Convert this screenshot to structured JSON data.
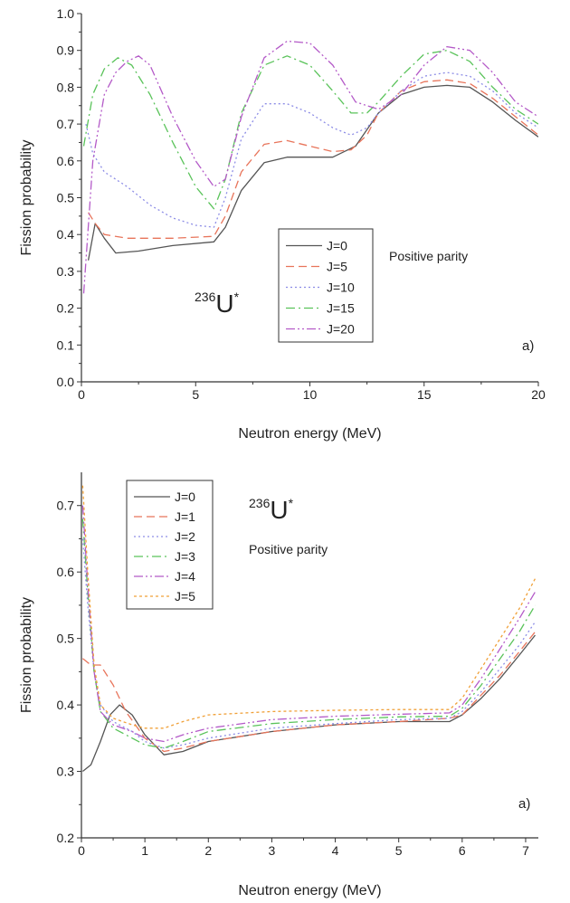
{
  "chart_data": [
    {
      "type": "line",
      "xlabel": "Neutron energy (MeV)",
      "ylabel": "Fission probability",
      "xlim": [
        0,
        20
      ],
      "ylim": [
        0.0,
        1.0
      ],
      "xticks": [
        0,
        5,
        10,
        15,
        20
      ],
      "yticks": [
        0.0,
        0.1,
        0.2,
        0.3,
        0.4,
        0.5,
        0.6,
        0.7,
        0.8,
        0.9,
        1.0
      ],
      "tick_format_y": 1,
      "legend_position": "center-right",
      "annotation_nuclide": {
        "mass": "236",
        "symbol": "U",
        "mark": "*"
      },
      "annotation_parity": "Positive parity",
      "panel_tag": "a)",
      "series": [
        {
          "name": "J=0",
          "color": "#555555",
          "dash": "none",
          "x": [
            0.3,
            0.6,
            1.0,
            1.5,
            2.5,
            4,
            5.8,
            6.3,
            7,
            8,
            9,
            10,
            11,
            12,
            13,
            14,
            15,
            16,
            17,
            18,
            19,
            20
          ],
          "y": [
            0.33,
            0.43,
            0.39,
            0.35,
            0.355,
            0.37,
            0.38,
            0.42,
            0.52,
            0.595,
            0.61,
            0.61,
            0.61,
            0.64,
            0.73,
            0.78,
            0.8,
            0.805,
            0.8,
            0.76,
            0.71,
            0.665
          ]
        },
        {
          "name": "J=5",
          "color": "#e8745a",
          "dash": "9,5",
          "x": [
            0.3,
            0.6,
            1.0,
            2,
            4,
            5.8,
            6.3,
            7,
            8,
            9,
            10,
            11,
            11.8,
            12.5,
            13,
            14,
            15,
            16,
            17,
            18,
            19,
            20
          ],
          "y": [
            0.46,
            0.43,
            0.4,
            0.39,
            0.39,
            0.395,
            0.45,
            0.57,
            0.645,
            0.655,
            0.64,
            0.625,
            0.63,
            0.67,
            0.73,
            0.79,
            0.815,
            0.82,
            0.81,
            0.77,
            0.72,
            0.67
          ]
        },
        {
          "name": "J=10",
          "color": "#8d8de6",
          "dash": "2,3",
          "x": [
            0.2,
            0.5,
            1.0,
            2,
            3,
            4,
            5,
            5.8,
            6.3,
            7,
            8,
            9,
            10,
            11,
            11.8,
            12.5,
            13,
            14,
            15,
            16,
            17,
            18,
            19,
            20
          ],
          "y": [
            0.7,
            0.62,
            0.57,
            0.53,
            0.48,
            0.445,
            0.425,
            0.42,
            0.5,
            0.66,
            0.755,
            0.755,
            0.73,
            0.69,
            0.67,
            0.69,
            0.73,
            0.79,
            0.83,
            0.84,
            0.83,
            0.79,
            0.73,
            0.69
          ]
        },
        {
          "name": "J=15",
          "color": "#5ac35a",
          "dash": "10,4,2,4",
          "x": [
            0.1,
            0.5,
            1.0,
            1.6,
            2.2,
            3,
            4,
            5,
            5.8,
            6.3,
            7,
            8,
            9,
            10,
            11,
            11.8,
            12.5,
            13,
            14,
            15,
            16,
            17,
            18,
            19,
            20
          ],
          "y": [
            0.64,
            0.78,
            0.85,
            0.88,
            0.86,
            0.78,
            0.65,
            0.53,
            0.47,
            0.55,
            0.73,
            0.86,
            0.885,
            0.86,
            0.79,
            0.73,
            0.73,
            0.76,
            0.83,
            0.89,
            0.9,
            0.87,
            0.8,
            0.74,
            0.7
          ]
        },
        {
          "name": "J=20",
          "color": "#b45ac8",
          "dash": "10,3,2,3,2,3",
          "x": [
            0.1,
            0.5,
            1.0,
            1.5,
            2.0,
            2.5,
            3,
            4,
            5,
            5.8,
            6.3,
            7,
            8,
            9,
            10,
            11,
            12,
            13,
            14,
            15,
            16,
            17,
            18,
            19,
            20
          ],
          "y": [
            0.24,
            0.6,
            0.78,
            0.84,
            0.87,
            0.885,
            0.86,
            0.72,
            0.6,
            0.53,
            0.55,
            0.72,
            0.88,
            0.925,
            0.92,
            0.86,
            0.76,
            0.74,
            0.78,
            0.86,
            0.91,
            0.9,
            0.84,
            0.76,
            0.72
          ]
        }
      ]
    },
    {
      "type": "line",
      "xlabel": "Neutron energy (MeV)",
      "ylabel": "Fission probability",
      "xlim": [
        0,
        7.2
      ],
      "ylim": [
        0.2,
        0.75
      ],
      "xticks": [
        0,
        1,
        2,
        3,
        4,
        5,
        6,
        7
      ],
      "yticks": [
        0.2,
        0.3,
        0.4,
        0.5,
        0.6,
        0.7
      ],
      "tick_format_y": 1,
      "legend_position": "top-left",
      "annotation_nuclide": {
        "mass": "236",
        "symbol": "U",
        "mark": "*"
      },
      "annotation_parity": "Positive parity",
      "panel_tag": "a)",
      "series": [
        {
          "name": "J=0",
          "color": "#555555",
          "dash": "none",
          "x": [
            0.02,
            0.15,
            0.3,
            0.45,
            0.6,
            0.8,
            1.0,
            1.3,
            1.6,
            2,
            3,
            4,
            5,
            5.8,
            6,
            6.3,
            6.6,
            6.9,
            7.15
          ],
          "y": [
            0.3,
            0.31,
            0.345,
            0.385,
            0.4,
            0.385,
            0.355,
            0.325,
            0.33,
            0.345,
            0.36,
            0.37,
            0.375,
            0.375,
            0.385,
            0.41,
            0.44,
            0.475,
            0.505
          ]
        },
        {
          "name": "J=1",
          "color": "#e8745a",
          "dash": "9,5",
          "x": [
            0.02,
            0.15,
            0.3,
            0.5,
            0.7,
            1.0,
            1.3,
            1.6,
            2,
            3,
            4,
            5,
            5.8,
            6,
            6.3,
            6.6,
            6.9,
            7.15
          ],
          "y": [
            0.47,
            0.46,
            0.46,
            0.43,
            0.39,
            0.35,
            0.33,
            0.335,
            0.345,
            0.36,
            0.37,
            0.375,
            0.38,
            0.385,
            0.415,
            0.445,
            0.48,
            0.51
          ]
        },
        {
          "name": "J=2",
          "color": "#8d8de6",
          "dash": "2,3",
          "x": [
            0.02,
            0.1,
            0.2,
            0.3,
            0.5,
            0.8,
            1.0,
            1.3,
            1.6,
            2,
            3,
            4,
            5,
            5.8,
            6,
            6.3,
            6.6,
            6.9,
            7.15
          ],
          "y": [
            0.65,
            0.55,
            0.45,
            0.4,
            0.375,
            0.36,
            0.345,
            0.335,
            0.34,
            0.35,
            0.365,
            0.372,
            0.378,
            0.38,
            0.39,
            0.42,
            0.455,
            0.49,
            0.525
          ]
        },
        {
          "name": "J=3",
          "color": "#5ac35a",
          "dash": "10,4,2,4",
          "x": [
            0.02,
            0.1,
            0.2,
            0.3,
            0.5,
            0.8,
            1.0,
            1.3,
            1.6,
            2,
            3,
            4,
            5,
            5.8,
            6,
            6.3,
            6.6,
            6.9,
            7.15
          ],
          "y": [
            0.68,
            0.57,
            0.45,
            0.39,
            0.365,
            0.35,
            0.34,
            0.335,
            0.345,
            0.36,
            0.372,
            0.378,
            0.382,
            0.383,
            0.395,
            0.43,
            0.47,
            0.51,
            0.55
          ]
        },
        {
          "name": "J=4",
          "color": "#b45ac8",
          "dash": "10,3,2,3,2,3",
          "x": [
            0.02,
            0.1,
            0.2,
            0.3,
            0.5,
            0.8,
            1.0,
            1.3,
            1.6,
            2,
            3,
            4,
            5,
            5.8,
            6,
            6.3,
            6.6,
            6.9,
            7.15
          ],
          "y": [
            0.7,
            0.58,
            0.45,
            0.39,
            0.37,
            0.36,
            0.35,
            0.345,
            0.355,
            0.365,
            0.378,
            0.383,
            0.386,
            0.388,
            0.4,
            0.44,
            0.485,
            0.53,
            0.57
          ]
        },
        {
          "name": "J=5",
          "color": "#f0a038",
          "dash": "3,3",
          "x": [
            0.02,
            0.1,
            0.2,
            0.3,
            0.5,
            0.8,
            1.0,
            1.3,
            1.6,
            2,
            3,
            4,
            5,
            5.8,
            6,
            6.3,
            6.6,
            6.9,
            7.15
          ],
          "y": [
            0.73,
            0.6,
            0.46,
            0.4,
            0.38,
            0.37,
            0.365,
            0.365,
            0.375,
            0.385,
            0.39,
            0.392,
            0.393,
            0.393,
            0.41,
            0.455,
            0.5,
            0.545,
            0.59
          ]
        }
      ]
    }
  ]
}
